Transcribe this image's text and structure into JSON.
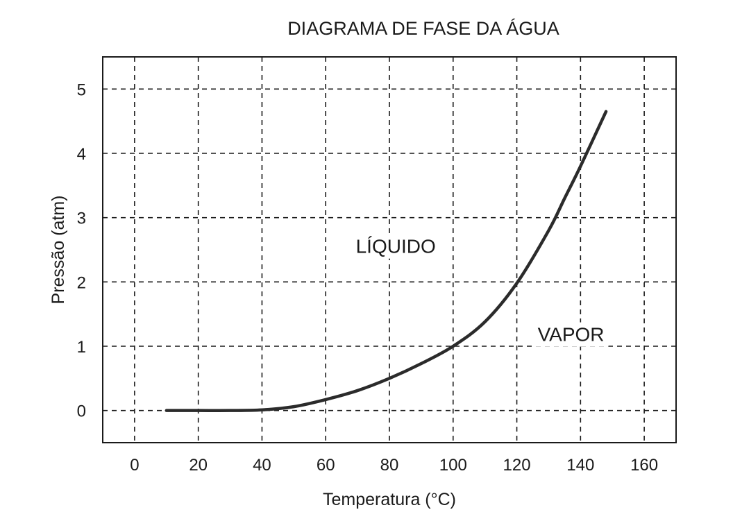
{
  "chart_data": {
    "type": "line",
    "title": "DIAGRAMA DE FASE DA ÁGUA",
    "xlabel": "Temperatura (°C)",
    "ylabel": "Pressão (atm)",
    "xlim": [
      -10,
      170
    ],
    "ylim": [
      -0.5,
      5.5
    ],
    "x_ticks": [
      "0",
      "20",
      "40",
      "60",
      "80",
      "100",
      "120",
      "140",
      "160"
    ],
    "y_ticks": [
      "0",
      "1",
      "2",
      "3",
      "4",
      "5"
    ],
    "grid": true,
    "grid_style": "dashed",
    "line_color": "#2b2b2b",
    "region_labels": [
      {
        "text": "LÍQUIDO",
        "x": 82,
        "y": 2.45
      },
      {
        "text": "VAPOR",
        "x": 137,
        "y": 1.08
      }
    ],
    "series": [
      {
        "points": [
          [
            10,
            0.0
          ],
          [
            20,
            0.0
          ],
          [
            30,
            0.0
          ],
          [
            40,
            0.01
          ],
          [
            50,
            0.06
          ],
          [
            60,
            0.17
          ],
          [
            70,
            0.31
          ],
          [
            80,
            0.5
          ],
          [
            90,
            0.73
          ],
          [
            100,
            1.0
          ],
          [
            110,
            1.38
          ],
          [
            120,
            1.98
          ],
          [
            130,
            2.8
          ],
          [
            135,
            3.3
          ],
          [
            140,
            3.8
          ],
          [
            148,
            4.65
          ]
        ]
      }
    ]
  }
}
